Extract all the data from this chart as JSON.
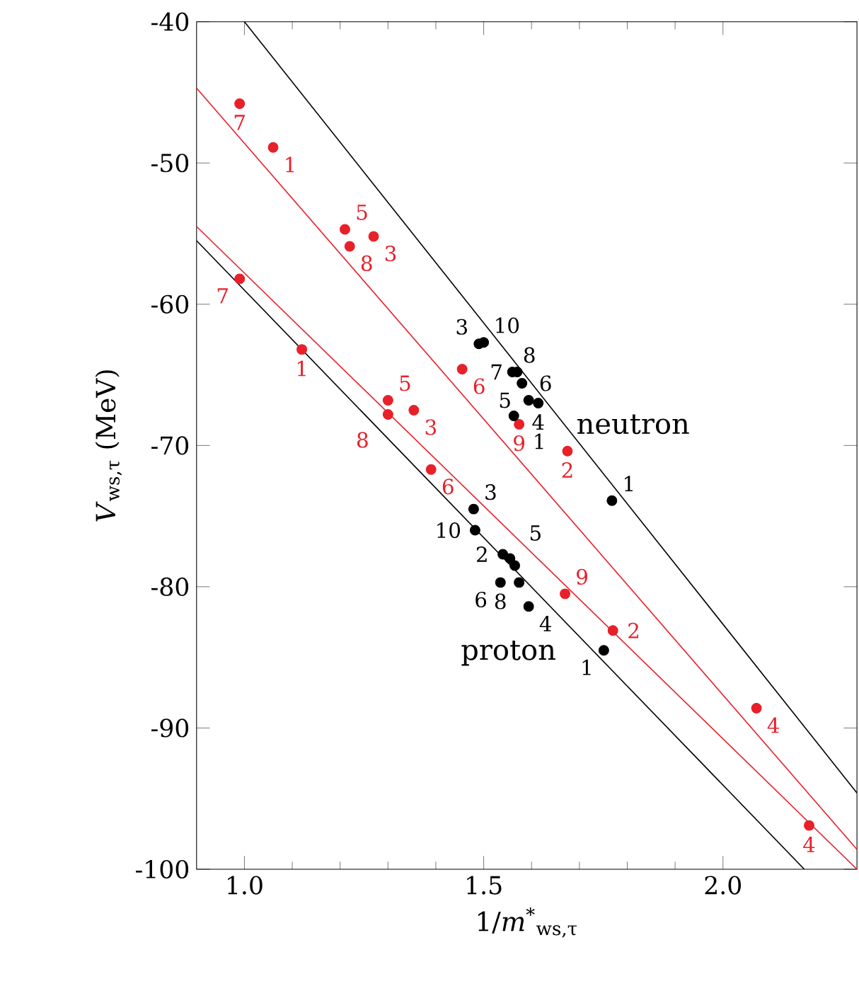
{
  "chart_data": {
    "type": "scatter",
    "xlabel": "1/*m*$^{*}$$_{ws,τ}$",
    "ylabel": "*V*$_{ws,τ}$ (MeV)",
    "xlim": [
      0.9,
      2.28
    ],
    "ylim": [
      -100,
      -40
    ],
    "xticks": [
      {
        "value": 1,
        "label": "1.0"
      },
      {
        "value": 1.5,
        "label": "1.5"
      },
      {
        "value": 2,
        "label": "2.0"
      }
    ],
    "yticks": [
      -100,
      -90,
      -80,
      -70,
      -60,
      -50,
      -40
    ],
    "grid": false,
    "series": [
      {
        "marker": "circle",
        "color": "#e8202a",
        "x": [
          0.99,
          1.06,
          1.21,
          1.22,
          1.27,
          1.455,
          1.574,
          1.675,
          2.07
        ],
        "values": [
          -45.8,
          -48.9,
          -54.7,
          -55.9,
          -55.2,
          -64.6,
          -68.5,
          -70.4,
          -88.6
        ]
      },
      {
        "marker": "circle",
        "color": "#e8202a",
        "x": [
          0.99,
          1.12,
          1.3,
          1.3,
          1.354,
          1.39,
          1.67,
          1.77,
          2.18
        ],
        "values": [
          -58.2,
          -63.2,
          -66.8,
          -67.8,
          -67.5,
          -71.7,
          -80.5,
          -83.1,
          -96.9
        ]
      },
      {
        "marker": "circle",
        "color": "#000000",
        "x": [
          1.768,
          1.49,
          1.5,
          1.56,
          1.57,
          1.58,
          1.594,
          1.614,
          1.563
        ],
        "values": [
          -73.9,
          -62.8,
          -62.7,
          -64.8,
          -64.8,
          -65.6,
          -66.8,
          -67.0,
          -67.9
        ]
      },
      {
        "marker": "circle",
        "color": "#000000",
        "x": [
          1.479,
          1.482,
          1.54,
          1.555,
          1.565,
          1.535,
          1.574,
          1.594,
          1.751
        ],
        "values": [
          -74.5,
          -76.0,
          -77.7,
          -78.0,
          -78.5,
          -79.7,
          -79.7,
          -81.4,
          -84.5
        ]
      },
      {
        "type": "line",
        "marker": "none",
        "color": "#000000",
        "x": [
          1.0,
          2.28
        ],
        "values": [
          -40,
          -94.6
        ]
      },
      {
        "type": "line",
        "marker": "none",
        "color": "#e8202a",
        "x": [
          0.9,
          2.28
        ],
        "values": [
          -44.7,
          -98.6
        ]
      },
      {
        "type": "line",
        "marker": "none",
        "color": "#e8202a",
        "x": [
          0.9,
          2.28
        ],
        "values": [
          -54.5,
          -100
        ]
      },
      {
        "type": "line",
        "marker": "none",
        "color": "#000000",
        "x": [
          0.9,
          2.17
        ],
        "values": [
          -55.5,
          -100
        ]
      }
    ],
    "annotations": [
      "neutron",
      "proton",
      {
        "text": "7",
        "x": 0.99,
        "y": -45.8
      },
      {
        "text": "1",
        "x": 1.06,
        "y": -48.9
      },
      {
        "text": "5",
        "x": 1.21,
        "y": -54.7
      },
      {
        "text": "8",
        "x": 1.22,
        "y": -55.9
      },
      {
        "text": "3",
        "x": 1.27,
        "y": -55.2
      },
      {
        "text": "6",
        "x": 1.455,
        "y": -64.6
      },
      {
        "text": "9",
        "x": 1.574,
        "y": -68.5
      },
      {
        "text": "2",
        "x": 1.675,
        "y": -70.4
      },
      {
        "text": "4",
        "x": 2.07,
        "y": -88.6
      },
      {
        "text": "7",
        "x": 0.99,
        "y": -58.2
      },
      {
        "text": "1",
        "x": 1.12,
        "y": -63.2
      },
      {
        "text": "5",
        "x": 1.3,
        "y": -66.8
      },
      {
        "text": "8",
        "x": 1.3,
        "y": -67.8
      },
      {
        "text": "3",
        "x": 1.354,
        "y": -67.5
      },
      {
        "text": "6",
        "x": 1.39,
        "y": -71.7
      },
      {
        "text": "9",
        "x": 1.67,
        "y": -80.5
      },
      {
        "text": "2",
        "x": 1.77,
        "y": -83.1
      },
      {
        "text": "4",
        "x": 2.18,
        "y": -96.9
      },
      {
        "text": "1",
        "x": 1.768,
        "y": -73.9
      },
      {
        "text": "3",
        "x": 1.49,
        "y": -62.8
      },
      {
        "text": "10",
        "x": 1.5,
        "y": -62.7
      },
      {
        "text": "8",
        "x": 1.56,
        "y": -64.8
      },
      {
        "text": "7",
        "x": 1.57,
        "y": -64.8
      },
      {
        "text": "5",
        "x": 1.58,
        "y": -65.6
      },
      {
        "text": "6",
        "x": 1.594,
        "y": -66.8
      },
      {
        "text": "4",
        "x": 1.614,
        "y": -67.0
      },
      {
        "text": "1",
        "x": 1.563,
        "y": -67.9
      },
      {
        "text": "3",
        "x": 1.479,
        "y": -74.5
      },
      {
        "text": "10",
        "x": 1.482,
        "y": -76.0
      },
      {
        "text": "2",
        "x": 1.54,
        "y": -77.7
      },
      {
        "text": "5",
        "x": 1.555,
        "y": -78.0
      },
      {
        "text": "6",
        "x": 1.565,
        "y": -78.5
      },
      {
        "text": "8",
        "x": 1.535,
        "y": -79.7
      },
      {
        "text": "4",
        "x": 1.594,
        "y": -81.4
      },
      {
        "text": "1",
        "x": 1.751,
        "y": -84.5
      }
    ]
  }
}
